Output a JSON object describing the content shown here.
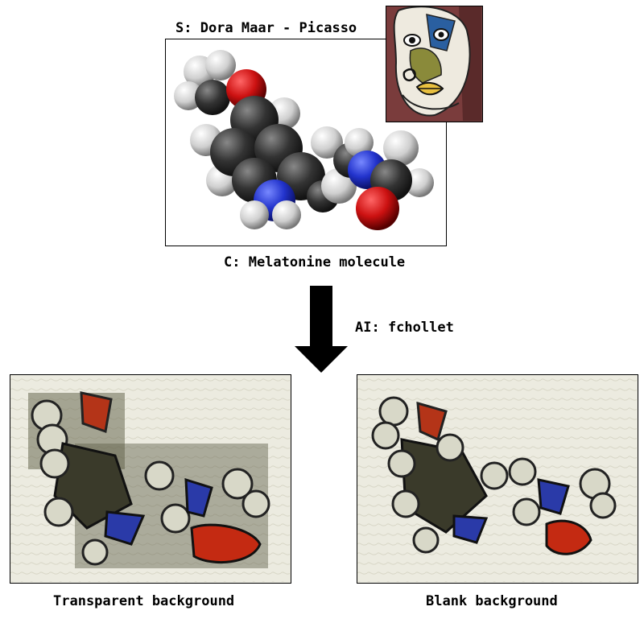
{
  "style_label": "S: Dora Maar - Picasso",
  "content_label": "C: Melatonine molecule",
  "ai_label": "AI: fchollet",
  "result_left_label": "Transparent background",
  "result_right_label": "Blank background",
  "colors": {
    "carbon": "#333333",
    "hydrogen": "#e6e6e6",
    "oxygen": "#cc1111",
    "nitrogen": "#2233cc",
    "arrow": "#000000"
  }
}
